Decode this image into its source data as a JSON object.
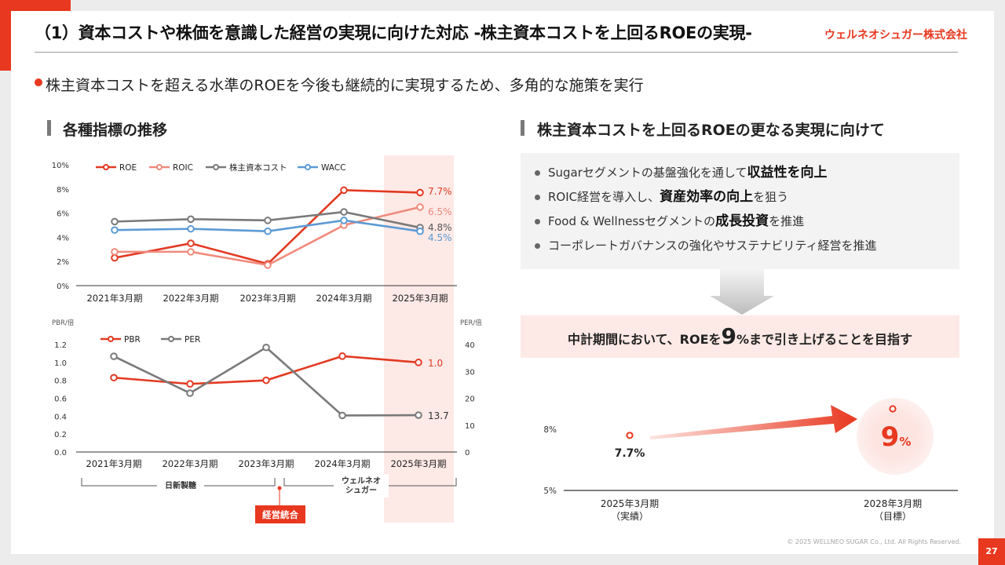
{
  "header": {
    "title": "（1）資本コストや株価を意識した経営の実現に向けた対応 -株主資本コストを上回るROEの実現-",
    "logo": "ウェルネオシュガー株式会社",
    "lead": "株主資本コストを超える水準のROEを今後も継続的に実現するため、多角的な施策を実行"
  },
  "left_section": {
    "heading": "各種指標の推移"
  },
  "right_section": {
    "heading": "株主資本コストを上回るROEの更なる実現に向けて",
    "bullets": [
      {
        "pre": "Sugarセグメントの基盤強化を通して",
        "bold": "収益性を向上",
        "post": ""
      },
      {
        "pre": "ROIC経営を導入し、",
        "bold": "資産効率の向上",
        "post": "を狙う"
      },
      {
        "pre": "Food & Wellnessセグメントの",
        "bold": "成長投資",
        "post": "を推進"
      },
      {
        "pre": "コーポレートガバナンスの強化やサステナビリティ経営を推進",
        "bold": "",
        "post": ""
      }
    ],
    "target": {
      "pre": "中計期間において、ROEを",
      "big": "9",
      "unit": "%",
      "post": "まで引き上げることを目指す"
    }
  },
  "colors": {
    "accent": "#e8381f",
    "roe": "#e23a22",
    "roic": "#f08a7c",
    "cost": "#7a7a7a",
    "wacc": "#5b9bd5",
    "highlight": "#fde9e6"
  },
  "chart_data": [
    {
      "type": "line",
      "categories": [
        "2021年3月期",
        "2022年3月期",
        "2023年3月期",
        "2024年3月期",
        "2025年3月期"
      ],
      "ylim": [
        0,
        10
      ],
      "yticks": [
        "0%",
        "2%",
        "4%",
        "6%",
        "8%",
        "10%"
      ],
      "legend": "top-left",
      "series": [
        {
          "name": "ROE",
          "values": [
            2.3,
            3.5,
            1.8,
            7.9,
            7.7
          ],
          "color": "#e23a22",
          "end_label": "7.7%"
        },
        {
          "name": "ROIC",
          "values": [
            2.8,
            2.8,
            1.7,
            5.0,
            6.5
          ],
          "color": "#f08a7c",
          "end_label": "6.5%"
        },
        {
          "name": "株主資本コスト",
          "values": [
            5.3,
            5.5,
            5.4,
            6.1,
            4.8
          ],
          "color": "#7a7a7a",
          "end_label": "4.8%"
        },
        {
          "name": "WACC",
          "values": [
            4.6,
            4.7,
            4.5,
            5.4,
            4.5
          ],
          "color": "#5b9bd5",
          "end_label": "4.5%"
        }
      ]
    },
    {
      "type": "line",
      "categories": [
        "2021年3月期",
        "2022年3月期",
        "2023年3月期",
        "2024年3月期",
        "2025年3月期"
      ],
      "y_left_label": "PBR/倍",
      "y_right_label": "PER/倍",
      "ylim_left": [
        0,
        1.2
      ],
      "ylim_right": [
        0,
        40
      ],
      "yticks_left": [
        "0.0",
        "0.2",
        "0.4",
        "0.6",
        "0.8",
        "1.0",
        "1.2"
      ],
      "yticks_right": [
        "0",
        "10",
        "20",
        "30",
        "40"
      ],
      "legend": "top-left",
      "series": [
        {
          "name": "PBR",
          "axis": "left",
          "values": [
            0.83,
            0.76,
            0.8,
            1.07,
            1.0
          ],
          "color": "#e23a22",
          "end_label": "1.0"
        },
        {
          "name": "PER",
          "axis": "right",
          "values": [
            35.6,
            21.9,
            38.9,
            13.6,
            13.7
          ],
          "color": "#7a7a7a",
          "end_label": "13.7"
        }
      ],
      "annotations": {
        "segment1": "日新製糖",
        "segment2": "ウェルネオ\nシュガー",
        "event": "経営統合"
      }
    },
    {
      "type": "scatter",
      "categories": [
        "2025年3月期\n（実績）",
        "2028年3月期\n（目標）"
      ],
      "ylim": [
        5,
        9
      ],
      "yticks": [
        "5%",
        "8%"
      ],
      "points": [
        {
          "x": "2025年3月期",
          "y": 7.7,
          "label": "7.7%"
        },
        {
          "x": "2028年3月期",
          "y": 9,
          "label": "9%"
        }
      ]
    }
  ],
  "footer": {
    "copyright": "© 2025 WELLNEO SUGAR Co., Ltd. All Rights Reserved.",
    "page": "27"
  }
}
